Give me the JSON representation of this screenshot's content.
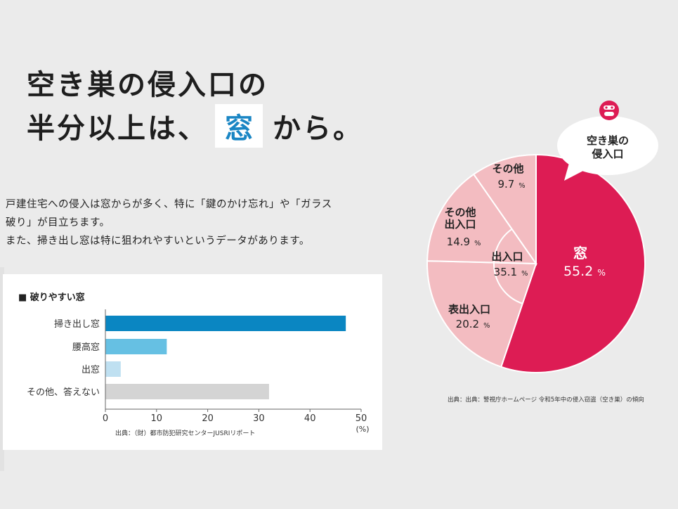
{
  "headline": {
    "line1": "空き巣の侵入口の",
    "line2_pre": "半分以上は、",
    "line2_highlight": "窓",
    "line2_post": "から。"
  },
  "body": {
    "line1": "戸建住宅への侵入は窓からが多く、特に「鍵のかけ忘れ」や「ガラス",
    "line2": "破り」が目立ちます。",
    "line3": "また、掃き出し窓は特に狙われやすいというデータがあります。"
  },
  "colors": {
    "accent_red": "#dd1c54",
    "pie_pink": "#f3bcc1",
    "bar_dark_blue": "#0a86c2",
    "bar_mid_blue": "#66c0e3",
    "bar_light_blue": "#bfe0f1",
    "bar_gray": "#d4d4d4",
    "highlight_blue": "#1a86c4"
  },
  "chart_data": [
    {
      "type": "bar",
      "orientation": "horizontal",
      "title": "■ 破りやすい窓",
      "categories": [
        "掃き出し窓",
        "腰高窓",
        "出窓",
        "その他、答えない"
      ],
      "values": [
        47,
        12,
        3,
        32
      ],
      "xlim": [
        0,
        50
      ],
      "xticks": [
        0,
        10,
        20,
        30,
        40,
        50
      ],
      "xlabel": "(%)",
      "source": "出典：（財）都市防犯研究センターJUSRIリポート"
    },
    {
      "type": "pie",
      "callout": "空き巣の\n侵入口",
      "unit": "%",
      "slices": [
        {
          "label": "窓",
          "value": 55.2
        },
        {
          "label": "表出入口",
          "value": 20.2
        },
        {
          "label": "その他\n出入口",
          "value": 14.9
        },
        {
          "label": "その他",
          "value": 9.7
        }
      ],
      "inner": {
        "label": "出入口",
        "value": 35.1
      },
      "source": "出典：出典：警視庁ホームページ 令和5年中の侵入窃盗（空き巣）の傾向"
    }
  ]
}
